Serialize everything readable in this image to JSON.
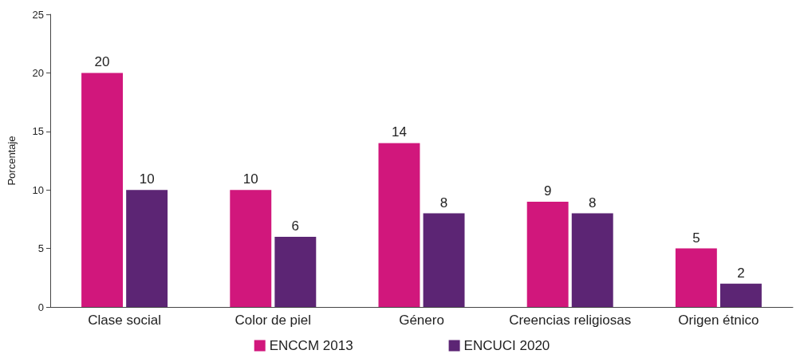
{
  "chart_data": {
    "type": "bar",
    "ylabel": "Porcentaje",
    "categories": [
      "Clase social",
      "Color de piel",
      "Género",
      "Creencias religiosas",
      "Origen étnico"
    ],
    "series": [
      {
        "name": "ENCCM 2013",
        "color": "#d1177c",
        "values": [
          20,
          10,
          14,
          9,
          5
        ]
      },
      {
        "name": "ENCUCI 2020",
        "color": "#5c2574",
        "values": [
          10,
          6,
          8,
          8,
          2
        ]
      }
    ],
    "ylim": [
      0,
      25
    ],
    "yticks": [
      0,
      5,
      10,
      15,
      20,
      25
    ],
    "grid": false,
    "legend": "bottom",
    "data_labels": true
  }
}
